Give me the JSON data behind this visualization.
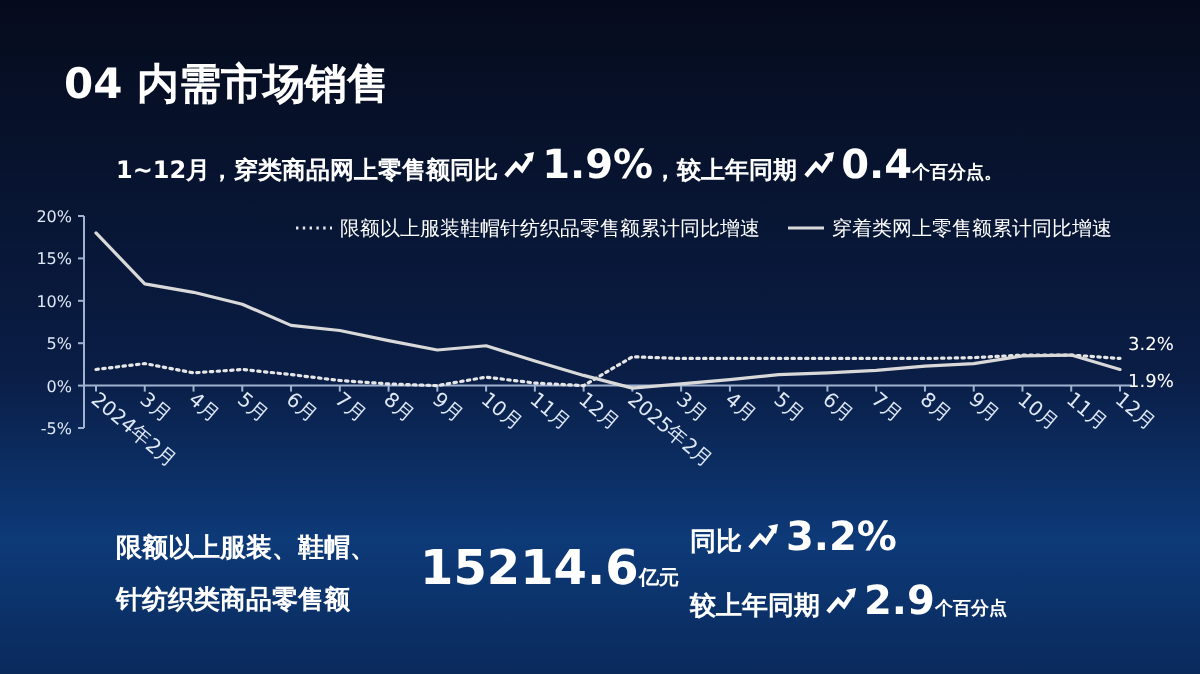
{
  "chart_data": {
    "type": "line",
    "title": "04 内需市场销售",
    "annotations": [
      "1~12月，穿类商品网上零售额同比",
      "1.9%",
      "，较上年同期",
      "0.4",
      "个百分点。",
      "限额以上服装、鞋帽、",
      "针纺织类商品零售额",
      "15214.6",
      "亿元",
      "同比",
      "3.2%",
      "较上年同期",
      "2.9",
      "个百分点"
    ],
    "categories": [
      "2024年2月",
      "3月",
      "4月",
      "5月",
      "6月",
      "7月",
      "8月",
      "9月",
      "10月",
      "11月",
      "12月",
      "2025年2月",
      "3月",
      "4月",
      "5月",
      "6月",
      "7月",
      "8月",
      "9月",
      "10月",
      "11月",
      "12月"
    ],
    "series": [
      {
        "name": "限额以上服装鞋帽针纺织品零售额累计同比增速",
        "color": "#e6e6e6",
        "line_style": "dotted",
        "values": [
          1.9,
          2.6,
          1.5,
          1.9,
          1.3,
          0.6,
          0.2,
          0.0,
          1.0,
          0.3,
          0.0,
          3.4,
          3.2,
          3.2,
          3.2,
          3.2,
          3.2,
          3.2,
          3.3,
          3.6,
          3.6,
          3.2
        ],
        "value_labels": [
          null,
          null,
          null,
          null,
          null,
          null,
          null,
          null,
          null,
          null,
          null,
          null,
          null,
          null,
          null,
          null,
          null,
          null,
          null,
          null,
          null,
          "3.2%"
        ]
      },
      {
        "name": "穿着类网上零售额累计同比增速",
        "color": "#d9d9d9",
        "line_style": "solid",
        "values": [
          18.0,
          12.0,
          11.0,
          9.6,
          7.1,
          6.5,
          5.3,
          4.2,
          4.7,
          2.9,
          1.2,
          -0.3,
          0.2,
          0.7,
          1.3,
          1.5,
          1.8,
          2.3,
          2.6,
          3.5,
          3.6,
          1.9
        ],
        "value_labels": [
          null,
          null,
          null,
          null,
          null,
          null,
          null,
          null,
          null,
          null,
          null,
          null,
          null,
          null,
          null,
          null,
          null,
          null,
          null,
          null,
          null,
          "1.9%"
        ]
      }
    ],
    "ylim": [
      -5,
      20
    ],
    "yticks": [
      {
        "value": -5,
        "label": "-5%"
      },
      {
        "value": 0,
        "label": "0%"
      },
      {
        "value": 5,
        "label": "5%"
      },
      {
        "value": 10,
        "label": "10%"
      },
      {
        "value": 15,
        "label": "15%"
      },
      {
        "value": 20,
        "label": "20%"
      }
    ],
    "legend": "top right",
    "grid": false,
    "marker": "none"
  }
}
